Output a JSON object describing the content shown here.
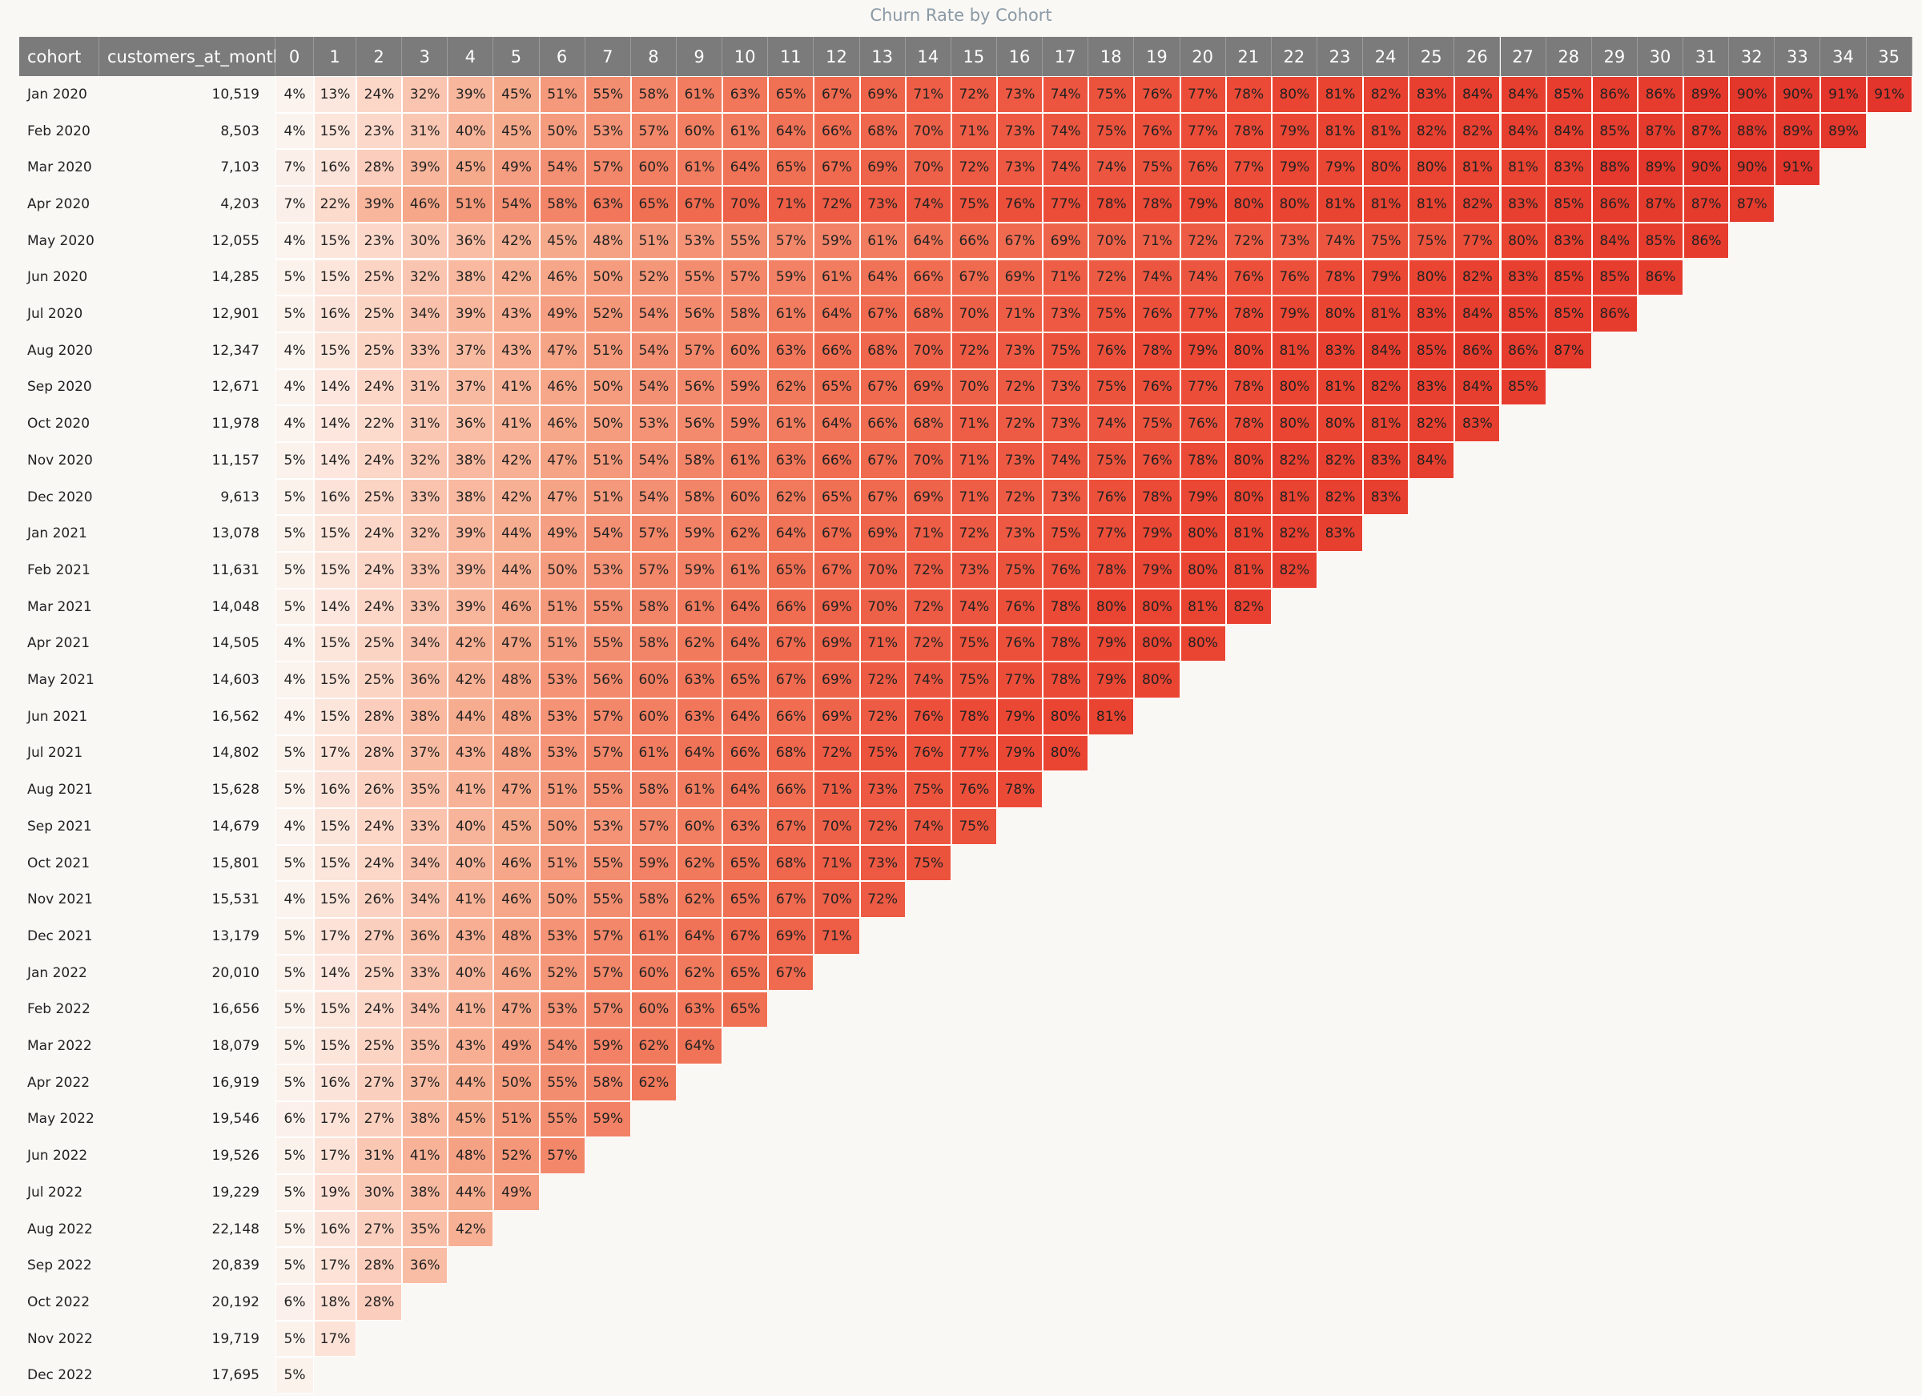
{
  "title": "Churn Rate by Cohort",
  "table": {
    "columns": [
      "cohort",
      "customers_at_month",
      "0",
      "1",
      "2",
      "3",
      "4",
      "5",
      "6",
      "7",
      "8",
      "9",
      "10",
      "11",
      "12",
      "13",
      "14",
      "15",
      "16",
      "17",
      "18",
      "19",
      "20",
      "21",
      "22",
      "23",
      "24",
      "25",
      "26",
      "27",
      "28",
      "29",
      "30",
      "31",
      "32",
      "33",
      "34",
      "35"
    ],
    "rows": [
      {
        "cohort": "Jan 2020",
        "customers_at_month": "10,519",
        "cells": [
          "4%",
          "13%",
          "24%",
          "32%",
          "39%",
          "45%",
          "51%",
          "55%",
          "58%",
          "61%",
          "63%",
          "65%",
          "67%",
          "69%",
          "71%",
          "72%",
          "73%",
          "74%",
          "75%",
          "76%",
          "77%",
          "78%",
          "80%",
          "81%",
          "82%",
          "83%",
          "84%",
          "84%",
          "85%",
          "86%",
          "86%",
          "89%",
          "90%",
          "90%",
          "91%",
          "91%"
        ]
      },
      {
        "cohort": "Feb 2020",
        "customers_at_month": "8,503",
        "cells": [
          "4%",
          "15%",
          "23%",
          "31%",
          "40%",
          "45%",
          "50%",
          "53%",
          "57%",
          "60%",
          "61%",
          "64%",
          "66%",
          "68%",
          "70%",
          "71%",
          "73%",
          "74%",
          "75%",
          "76%",
          "77%",
          "78%",
          "79%",
          "81%",
          "81%",
          "82%",
          "82%",
          "84%",
          "84%",
          "85%",
          "87%",
          "87%",
          "88%",
          "89%",
          "89%"
        ]
      },
      {
        "cohort": "Mar 2020",
        "customers_at_month": "7,103",
        "cells": [
          "7%",
          "16%",
          "28%",
          "39%",
          "45%",
          "49%",
          "54%",
          "57%",
          "60%",
          "61%",
          "64%",
          "65%",
          "67%",
          "69%",
          "70%",
          "72%",
          "73%",
          "74%",
          "74%",
          "75%",
          "76%",
          "77%",
          "79%",
          "79%",
          "80%",
          "80%",
          "81%",
          "81%",
          "83%",
          "88%",
          "89%",
          "90%",
          "90%",
          "91%"
        ]
      },
      {
        "cohort": "Apr 2020",
        "customers_at_month": "4,203",
        "cells": [
          "7%",
          "22%",
          "39%",
          "46%",
          "51%",
          "54%",
          "58%",
          "63%",
          "65%",
          "67%",
          "70%",
          "71%",
          "72%",
          "73%",
          "74%",
          "75%",
          "76%",
          "77%",
          "78%",
          "78%",
          "79%",
          "80%",
          "80%",
          "81%",
          "81%",
          "81%",
          "82%",
          "83%",
          "85%",
          "86%",
          "87%",
          "87%",
          "87%"
        ]
      },
      {
        "cohort": "May 2020",
        "customers_at_month": "12,055",
        "cells": [
          "4%",
          "15%",
          "23%",
          "30%",
          "36%",
          "42%",
          "45%",
          "48%",
          "51%",
          "53%",
          "55%",
          "57%",
          "59%",
          "61%",
          "64%",
          "66%",
          "67%",
          "69%",
          "70%",
          "71%",
          "72%",
          "72%",
          "73%",
          "74%",
          "75%",
          "75%",
          "77%",
          "80%",
          "83%",
          "84%",
          "85%",
          "86%"
        ]
      },
      {
        "cohort": "Jun 2020",
        "customers_at_month": "14,285",
        "cells": [
          "5%",
          "15%",
          "25%",
          "32%",
          "38%",
          "42%",
          "46%",
          "50%",
          "52%",
          "55%",
          "57%",
          "59%",
          "61%",
          "64%",
          "66%",
          "67%",
          "69%",
          "71%",
          "72%",
          "74%",
          "74%",
          "76%",
          "76%",
          "78%",
          "79%",
          "80%",
          "82%",
          "83%",
          "85%",
          "85%",
          "86%"
        ]
      },
      {
        "cohort": "Jul 2020",
        "customers_at_month": "12,901",
        "cells": [
          "5%",
          "16%",
          "25%",
          "34%",
          "39%",
          "43%",
          "49%",
          "52%",
          "54%",
          "56%",
          "58%",
          "61%",
          "64%",
          "67%",
          "68%",
          "70%",
          "71%",
          "73%",
          "75%",
          "76%",
          "77%",
          "78%",
          "79%",
          "80%",
          "81%",
          "83%",
          "84%",
          "85%",
          "85%",
          "86%"
        ]
      },
      {
        "cohort": "Aug 2020",
        "customers_at_month": "12,347",
        "cells": [
          "4%",
          "15%",
          "25%",
          "33%",
          "37%",
          "43%",
          "47%",
          "51%",
          "54%",
          "57%",
          "60%",
          "63%",
          "66%",
          "68%",
          "70%",
          "72%",
          "73%",
          "75%",
          "76%",
          "78%",
          "79%",
          "80%",
          "81%",
          "83%",
          "84%",
          "85%",
          "86%",
          "86%",
          "87%"
        ]
      },
      {
        "cohort": "Sep 2020",
        "customers_at_month": "12,671",
        "cells": [
          "4%",
          "14%",
          "24%",
          "31%",
          "37%",
          "41%",
          "46%",
          "50%",
          "54%",
          "56%",
          "59%",
          "62%",
          "65%",
          "67%",
          "69%",
          "70%",
          "72%",
          "73%",
          "75%",
          "76%",
          "77%",
          "78%",
          "80%",
          "81%",
          "82%",
          "83%",
          "84%",
          "85%"
        ]
      },
      {
        "cohort": "Oct 2020",
        "customers_at_month": "11,978",
        "cells": [
          "4%",
          "14%",
          "22%",
          "31%",
          "36%",
          "41%",
          "46%",
          "50%",
          "53%",
          "56%",
          "59%",
          "61%",
          "64%",
          "66%",
          "68%",
          "71%",
          "72%",
          "73%",
          "74%",
          "75%",
          "76%",
          "78%",
          "80%",
          "80%",
          "81%",
          "82%",
          "83%"
        ]
      },
      {
        "cohort": "Nov 2020",
        "customers_at_month": "11,157",
        "cells": [
          "5%",
          "14%",
          "24%",
          "32%",
          "38%",
          "42%",
          "47%",
          "51%",
          "54%",
          "58%",
          "61%",
          "63%",
          "66%",
          "67%",
          "70%",
          "71%",
          "73%",
          "74%",
          "75%",
          "76%",
          "78%",
          "80%",
          "82%",
          "82%",
          "83%",
          "84%"
        ]
      },
      {
        "cohort": "Dec 2020",
        "customers_at_month": "9,613",
        "cells": [
          "5%",
          "16%",
          "25%",
          "33%",
          "38%",
          "42%",
          "47%",
          "51%",
          "54%",
          "58%",
          "60%",
          "62%",
          "65%",
          "67%",
          "69%",
          "71%",
          "72%",
          "73%",
          "76%",
          "78%",
          "79%",
          "80%",
          "81%",
          "82%",
          "83%"
        ]
      },
      {
        "cohort": "Jan 2021",
        "customers_at_month": "13,078",
        "cells": [
          "5%",
          "15%",
          "24%",
          "32%",
          "39%",
          "44%",
          "49%",
          "54%",
          "57%",
          "59%",
          "62%",
          "64%",
          "67%",
          "69%",
          "71%",
          "72%",
          "73%",
          "75%",
          "77%",
          "79%",
          "80%",
          "81%",
          "82%",
          "83%"
        ]
      },
      {
        "cohort": "Feb 2021",
        "customers_at_month": "11,631",
        "cells": [
          "5%",
          "15%",
          "24%",
          "33%",
          "39%",
          "44%",
          "50%",
          "53%",
          "57%",
          "59%",
          "61%",
          "65%",
          "67%",
          "70%",
          "72%",
          "73%",
          "75%",
          "76%",
          "78%",
          "79%",
          "80%",
          "81%",
          "82%"
        ]
      },
      {
        "cohort": "Mar 2021",
        "customers_at_month": "14,048",
        "cells": [
          "5%",
          "14%",
          "24%",
          "33%",
          "39%",
          "46%",
          "51%",
          "55%",
          "58%",
          "61%",
          "64%",
          "66%",
          "69%",
          "70%",
          "72%",
          "74%",
          "76%",
          "78%",
          "80%",
          "80%",
          "81%",
          "82%"
        ]
      },
      {
        "cohort": "Apr 2021",
        "customers_at_month": "14,505",
        "cells": [
          "4%",
          "15%",
          "25%",
          "34%",
          "42%",
          "47%",
          "51%",
          "55%",
          "58%",
          "62%",
          "64%",
          "67%",
          "69%",
          "71%",
          "72%",
          "75%",
          "76%",
          "78%",
          "79%",
          "80%",
          "80%"
        ]
      },
      {
        "cohort": "May 2021",
        "customers_at_month": "14,603",
        "cells": [
          "4%",
          "15%",
          "25%",
          "36%",
          "42%",
          "48%",
          "53%",
          "56%",
          "60%",
          "63%",
          "65%",
          "67%",
          "69%",
          "72%",
          "74%",
          "75%",
          "77%",
          "78%",
          "79%",
          "80%"
        ]
      },
      {
        "cohort": "Jun 2021",
        "customers_at_month": "16,562",
        "cells": [
          "4%",
          "15%",
          "28%",
          "38%",
          "44%",
          "48%",
          "53%",
          "57%",
          "60%",
          "63%",
          "64%",
          "66%",
          "69%",
          "72%",
          "76%",
          "78%",
          "79%",
          "80%",
          "81%"
        ]
      },
      {
        "cohort": "Jul 2021",
        "customers_at_month": "14,802",
        "cells": [
          "5%",
          "17%",
          "28%",
          "37%",
          "43%",
          "48%",
          "53%",
          "57%",
          "61%",
          "64%",
          "66%",
          "68%",
          "72%",
          "75%",
          "76%",
          "77%",
          "79%",
          "80%"
        ]
      },
      {
        "cohort": "Aug 2021",
        "customers_at_month": "15,628",
        "cells": [
          "5%",
          "16%",
          "26%",
          "35%",
          "41%",
          "47%",
          "51%",
          "55%",
          "58%",
          "61%",
          "64%",
          "66%",
          "71%",
          "73%",
          "75%",
          "76%",
          "78%"
        ]
      },
      {
        "cohort": "Sep 2021",
        "customers_at_month": "14,679",
        "cells": [
          "4%",
          "15%",
          "24%",
          "33%",
          "40%",
          "45%",
          "50%",
          "53%",
          "57%",
          "60%",
          "63%",
          "67%",
          "70%",
          "72%",
          "74%",
          "75%"
        ]
      },
      {
        "cohort": "Oct 2021",
        "customers_at_month": "15,801",
        "cells": [
          "5%",
          "15%",
          "24%",
          "34%",
          "40%",
          "46%",
          "51%",
          "55%",
          "59%",
          "62%",
          "65%",
          "68%",
          "71%",
          "73%",
          "75%"
        ]
      },
      {
        "cohort": "Nov 2021",
        "customers_at_month": "15,531",
        "cells": [
          "4%",
          "15%",
          "26%",
          "34%",
          "41%",
          "46%",
          "50%",
          "55%",
          "58%",
          "62%",
          "65%",
          "67%",
          "70%",
          "72%"
        ]
      },
      {
        "cohort": "Dec 2021",
        "customers_at_month": "13,179",
        "cells": [
          "5%",
          "17%",
          "27%",
          "36%",
          "43%",
          "48%",
          "53%",
          "57%",
          "61%",
          "64%",
          "67%",
          "69%",
          "71%"
        ]
      },
      {
        "cohort": "Jan 2022",
        "customers_at_month": "20,010",
        "cells": [
          "5%",
          "14%",
          "25%",
          "33%",
          "40%",
          "46%",
          "52%",
          "57%",
          "60%",
          "62%",
          "65%",
          "67%"
        ]
      },
      {
        "cohort": "Feb 2022",
        "customers_at_month": "16,656",
        "cells": [
          "5%",
          "15%",
          "24%",
          "34%",
          "41%",
          "47%",
          "53%",
          "57%",
          "60%",
          "63%",
          "65%"
        ]
      },
      {
        "cohort": "Mar 2022",
        "customers_at_month": "18,079",
        "cells": [
          "5%",
          "15%",
          "25%",
          "35%",
          "43%",
          "49%",
          "54%",
          "59%",
          "62%",
          "64%"
        ]
      },
      {
        "cohort": "Apr 2022",
        "customers_at_month": "16,919",
        "cells": [
          "5%",
          "16%",
          "27%",
          "37%",
          "44%",
          "50%",
          "55%",
          "58%",
          "62%"
        ]
      },
      {
        "cohort": "May 2022",
        "customers_at_month": "19,546",
        "cells": [
          "6%",
          "17%",
          "27%",
          "38%",
          "45%",
          "51%",
          "55%",
          "59%"
        ]
      },
      {
        "cohort": "Jun 2022",
        "customers_at_month": "19,526",
        "cells": [
          "5%",
          "17%",
          "31%",
          "41%",
          "48%",
          "52%",
          "57%"
        ]
      },
      {
        "cohort": "Jul 2022",
        "customers_at_month": "19,229",
        "cells": [
          "5%",
          "19%",
          "30%",
          "38%",
          "44%",
          "49%"
        ]
      },
      {
        "cohort": "Aug 2022",
        "customers_at_month": "22,148",
        "cells": [
          "5%",
          "16%",
          "27%",
          "35%",
          "42%"
        ]
      },
      {
        "cohort": "Sep 2022",
        "customers_at_month": "20,839",
        "cells": [
          "5%",
          "17%",
          "28%",
          "36%"
        ]
      },
      {
        "cohort": "Oct 2022",
        "customers_at_month": "20,192",
        "cells": [
          "6%",
          "18%",
          "28%"
        ]
      },
      {
        "cohort": "Nov 2022",
        "customers_at_month": "19,719",
        "cells": [
          "5%",
          "17%"
        ]
      },
      {
        "cohort": "Dec 2022",
        "customers_at_month": "17,695",
        "cells": [
          "5%"
        ]
      }
    ]
  }
}
